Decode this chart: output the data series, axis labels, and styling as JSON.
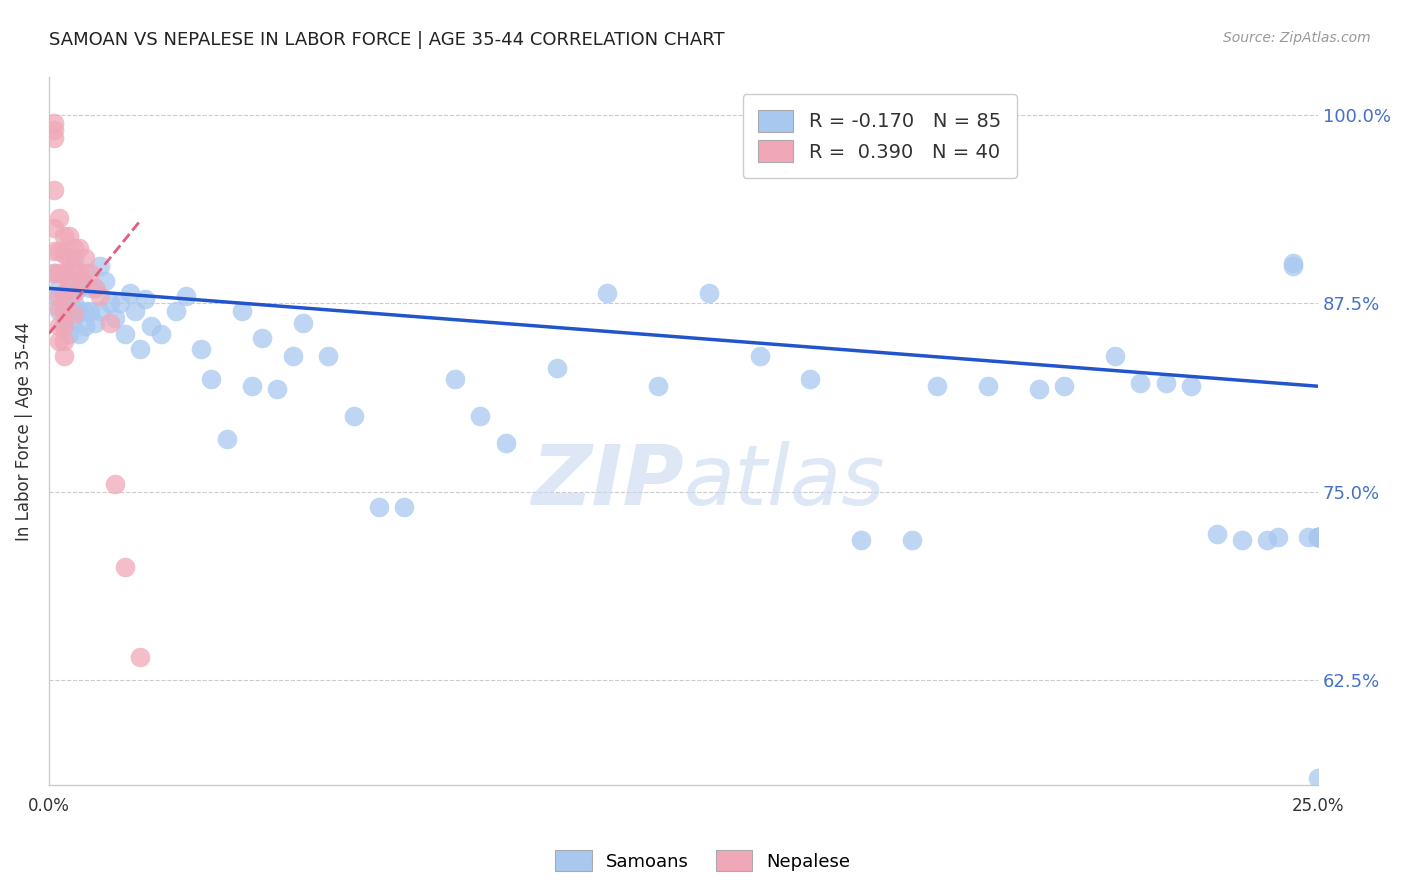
{
  "title": "SAMOAN VS NEPALESE IN LABOR FORCE | AGE 35-44 CORRELATION CHART",
  "source_text": "Source: ZipAtlas.com",
  "ylabel": "In Labor Force | Age 35-44",
  "xlim": [
    0.0,
    0.25
  ],
  "ylim": [
    0.555,
    1.025
  ],
  "xticks": [
    0.0,
    0.05,
    0.1,
    0.15,
    0.2,
    0.25
  ],
  "xtick_labels": [
    "0.0%",
    "",
    "",
    "",
    "",
    "25.0%"
  ],
  "yticks": [
    0.625,
    0.75,
    0.875,
    1.0
  ],
  "ytick_labels": [
    "62.5%",
    "75.0%",
    "87.5%",
    "100.0%"
  ],
  "blue_R": -0.17,
  "blue_N": 85,
  "pink_R": 0.39,
  "pink_N": 40,
  "blue_color": "#A8C8F0",
  "pink_color": "#F0A8B8",
  "blue_line_color": "#2255CC",
  "pink_line_color": "#E06080",
  "grid_color": "#CCCCCC",
  "background_color": "#FFFFFF",
  "title_color": "#222222",
  "tick_color_right": "#4472C4",
  "watermark_color": "#C8D8F0",
  "legend_labels": [
    "Samoans",
    "Nepalese"
  ],
  "blue_x": [
    0.001,
    0.001,
    0.002,
    0.002,
    0.003,
    0.003,
    0.003,
    0.003,
    0.004,
    0.004,
    0.004,
    0.005,
    0.005,
    0.005,
    0.005,
    0.006,
    0.006,
    0.006,
    0.007,
    0.007,
    0.007,
    0.008,
    0.008,
    0.009,
    0.009,
    0.01,
    0.01,
    0.011,
    0.012,
    0.013,
    0.014,
    0.015,
    0.016,
    0.017,
    0.018,
    0.019,
    0.02,
    0.022,
    0.025,
    0.027,
    0.03,
    0.032,
    0.035,
    0.038,
    0.04,
    0.042,
    0.045,
    0.048,
    0.05,
    0.055,
    0.06,
    0.065,
    0.07,
    0.08,
    0.085,
    0.09,
    0.1,
    0.11,
    0.12,
    0.13,
    0.14,
    0.15,
    0.16,
    0.17,
    0.175,
    0.185,
    0.195,
    0.2,
    0.21,
    0.215,
    0.22,
    0.225,
    0.23,
    0.235,
    0.24,
    0.242,
    0.245,
    0.245,
    0.248,
    0.25,
    0.25,
    0.25,
    0.25,
    0.25,
    0.25
  ],
  "blue_y": [
    0.895,
    0.88,
    0.885,
    0.87,
    0.895,
    0.875,
    0.87,
    0.86,
    0.885,
    0.87,
    0.855,
    0.905,
    0.89,
    0.875,
    0.865,
    0.885,
    0.87,
    0.855,
    0.895,
    0.87,
    0.86,
    0.885,
    0.87,
    0.885,
    0.862,
    0.9,
    0.87,
    0.89,
    0.875,
    0.865,
    0.875,
    0.855,
    0.882,
    0.87,
    0.845,
    0.878,
    0.86,
    0.855,
    0.87,
    0.88,
    0.845,
    0.825,
    0.785,
    0.87,
    0.82,
    0.852,
    0.818,
    0.84,
    0.862,
    0.84,
    0.8,
    0.74,
    0.74,
    0.825,
    0.8,
    0.782,
    0.832,
    0.882,
    0.82,
    0.882,
    0.84,
    0.825,
    0.718,
    0.718,
    0.82,
    0.82,
    0.818,
    0.82,
    0.84,
    0.822,
    0.822,
    0.82,
    0.722,
    0.718,
    0.718,
    0.72,
    0.902,
    0.9,
    0.72,
    0.72,
    0.72,
    0.72,
    0.72,
    0.72,
    0.56
  ],
  "pink_x": [
    0.001,
    0.001,
    0.001,
    0.001,
    0.001,
    0.001,
    0.001,
    0.002,
    0.002,
    0.002,
    0.002,
    0.002,
    0.002,
    0.002,
    0.003,
    0.003,
    0.003,
    0.003,
    0.003,
    0.003,
    0.003,
    0.003,
    0.004,
    0.004,
    0.004,
    0.005,
    0.005,
    0.005,
    0.005,
    0.006,
    0.006,
    0.007,
    0.007,
    0.008,
    0.009,
    0.01,
    0.012,
    0.013,
    0.015,
    0.018
  ],
  "pink_y": [
    0.995,
    0.99,
    0.985,
    0.95,
    0.925,
    0.91,
    0.895,
    0.932,
    0.91,
    0.895,
    0.88,
    0.872,
    0.86,
    0.85,
    0.92,
    0.908,
    0.895,
    0.882,
    0.87,
    0.86,
    0.85,
    0.84,
    0.92,
    0.905,
    0.89,
    0.912,
    0.898,
    0.882,
    0.868,
    0.912,
    0.895,
    0.905,
    0.888,
    0.895,
    0.885,
    0.88,
    0.862,
    0.755,
    0.7,
    0.64
  ],
  "blue_trend_x": [
    0.0,
    0.25
  ],
  "blue_trend_y": [
    0.885,
    0.82
  ],
  "pink_trend_x": [
    0.0,
    0.018
  ],
  "pink_trend_y": [
    0.855,
    0.93
  ]
}
